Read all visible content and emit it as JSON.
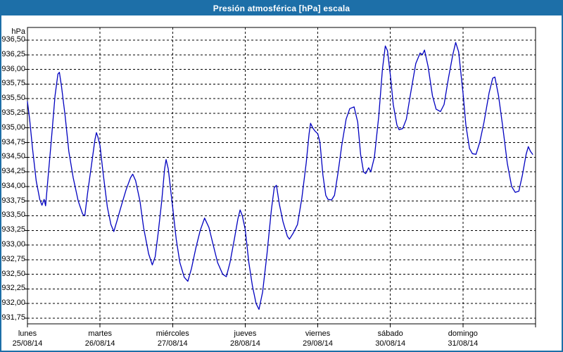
{
  "window": {
    "title": "Presión atmosférica [hPa] escala"
  },
  "chart_data": {
    "type": "line",
    "title": "Presión atmosférica [hPa] escala",
    "unit_label": "hPa",
    "grid": "dashed",
    "legend": "none",
    "line_color": "#0000c0",
    "y_axis": {
      "min": 931.75,
      "max": 936.5,
      "step": 0.25,
      "tick_labels": [
        "936,50",
        "936,25",
        "936,00",
        "935,75",
        "935,50",
        "935,25",
        "935,00",
        "934,75",
        "934,50",
        "934,25",
        "934,00",
        "933,75",
        "933,50",
        "933,25",
        "933,00",
        "932,75",
        "932,50",
        "932,25",
        "932,00",
        "931,75"
      ]
    },
    "x_axis": {
      "unit": "days",
      "range_days": 7,
      "days": [
        {
          "name": "lunes",
          "date": "25/08/14"
        },
        {
          "name": "martes",
          "date": "26/08/14"
        },
        {
          "name": "miércoles",
          "date": "27/08/14"
        },
        {
          "name": "jueves",
          "date": "28/08/14"
        },
        {
          "name": "viernes",
          "date": "29/08/14"
        },
        {
          "name": "sábado",
          "date": "30/08/14"
        },
        {
          "name": "domingo",
          "date": "31/08/14"
        }
      ]
    },
    "series": [
      {
        "name": "Presión atmosférica [hPa]",
        "x_unit": "days_from_monday_00h",
        "points": [
          [
            0.0,
            935.45
          ],
          [
            0.03,
            935.15
          ],
          [
            0.07,
            934.65
          ],
          [
            0.12,
            934.1
          ],
          [
            0.17,
            933.78
          ],
          [
            0.2,
            933.68
          ],
          [
            0.23,
            933.78
          ],
          [
            0.25,
            933.67
          ],
          [
            0.28,
            934.1
          ],
          [
            0.33,
            934.8
          ],
          [
            0.38,
            935.55
          ],
          [
            0.42,
            935.92
          ],
          [
            0.44,
            935.95
          ],
          [
            0.47,
            935.7
          ],
          [
            0.52,
            935.2
          ],
          [
            0.57,
            934.6
          ],
          [
            0.63,
            934.15
          ],
          [
            0.7,
            933.75
          ],
          [
            0.76,
            933.53
          ],
          [
            0.79,
            933.5
          ],
          [
            0.83,
            933.9
          ],
          [
            0.88,
            934.35
          ],
          [
            0.93,
            934.8
          ],
          [
            0.95,
            934.92
          ],
          [
            0.97,
            934.85
          ],
          [
            1.0,
            934.7
          ],
          [
            1.04,
            934.25
          ],
          [
            1.1,
            933.65
          ],
          [
            1.15,
            933.35
          ],
          [
            1.19,
            933.23
          ],
          [
            1.23,
            933.4
          ],
          [
            1.3,
            933.7
          ],
          [
            1.36,
            933.95
          ],
          [
            1.42,
            934.15
          ],
          [
            1.45,
            934.21
          ],
          [
            1.49,
            934.1
          ],
          [
            1.55,
            933.75
          ],
          [
            1.6,
            933.3
          ],
          [
            1.67,
            932.85
          ],
          [
            1.72,
            932.66
          ],
          [
            1.76,
            932.8
          ],
          [
            1.8,
            933.2
          ],
          [
            1.85,
            933.75
          ],
          [
            1.89,
            934.3
          ],
          [
            1.91,
            934.46
          ],
          [
            1.94,
            934.3
          ],
          [
            2.0,
            933.65
          ],
          [
            2.05,
            933.1
          ],
          [
            2.1,
            932.7
          ],
          [
            2.16,
            932.45
          ],
          [
            2.21,
            932.38
          ],
          [
            2.26,
            932.6
          ],
          [
            2.32,
            932.95
          ],
          [
            2.38,
            933.25
          ],
          [
            2.44,
            933.46
          ],
          [
            2.5,
            933.3
          ],
          [
            2.56,
            933.0
          ],
          [
            2.62,
            932.7
          ],
          [
            2.69,
            932.5
          ],
          [
            2.74,
            932.46
          ],
          [
            2.79,
            932.7
          ],
          [
            2.85,
            933.1
          ],
          [
            2.9,
            933.45
          ],
          [
            2.93,
            933.6
          ],
          [
            2.96,
            933.5
          ],
          [
            3.0,
            933.27
          ],
          [
            3.05,
            932.7
          ],
          [
            3.1,
            932.3
          ],
          [
            3.15,
            932.0
          ],
          [
            3.19,
            931.9
          ],
          [
            3.24,
            932.2
          ],
          [
            3.3,
            932.85
          ],
          [
            3.36,
            933.6
          ],
          [
            3.4,
            933.98
          ],
          [
            3.43,
            934.02
          ],
          [
            3.47,
            933.7
          ],
          [
            3.52,
            933.4
          ],
          [
            3.58,
            933.15
          ],
          [
            3.61,
            933.1
          ],
          [
            3.66,
            933.2
          ],
          [
            3.72,
            933.35
          ],
          [
            3.78,
            933.8
          ],
          [
            3.84,
            934.4
          ],
          [
            3.88,
            934.9
          ],
          [
            3.9,
            935.08
          ],
          [
            3.93,
            935.0
          ],
          [
            3.96,
            934.95
          ],
          [
            4.0,
            934.9
          ],
          [
            4.03,
            934.75
          ],
          [
            4.07,
            934.2
          ],
          [
            4.11,
            933.85
          ],
          [
            4.14,
            933.78
          ],
          [
            4.19,
            933.77
          ],
          [
            4.23,
            933.85
          ],
          [
            4.28,
            934.25
          ],
          [
            4.33,
            934.7
          ],
          [
            4.39,
            935.15
          ],
          [
            4.44,
            935.33
          ],
          [
            4.5,
            935.36
          ],
          [
            4.55,
            935.1
          ],
          [
            4.59,
            934.55
          ],
          [
            4.63,
            934.25
          ],
          [
            4.66,
            934.22
          ],
          [
            4.7,
            934.32
          ],
          [
            4.73,
            934.25
          ],
          [
            4.78,
            934.5
          ],
          [
            4.84,
            935.2
          ],
          [
            4.89,
            936.0
          ],
          [
            4.93,
            936.4
          ],
          [
            4.96,
            936.32
          ],
          [
            5.0,
            935.9
          ],
          [
            5.04,
            935.4
          ],
          [
            5.09,
            935.05
          ],
          [
            5.12,
            934.97
          ],
          [
            5.17,
            934.99
          ],
          [
            5.22,
            935.15
          ],
          [
            5.28,
            935.6
          ],
          [
            5.35,
            936.1
          ],
          [
            5.41,
            936.28
          ],
          [
            5.44,
            936.25
          ],
          [
            5.47,
            936.33
          ],
          [
            5.52,
            936.05
          ],
          [
            5.58,
            935.55
          ],
          [
            5.63,
            935.32
          ],
          [
            5.69,
            935.28
          ],
          [
            5.74,
            935.4
          ],
          [
            5.8,
            935.85
          ],
          [
            5.86,
            936.25
          ],
          [
            5.9,
            936.46
          ],
          [
            5.94,
            936.3
          ],
          [
            6.0,
            935.6
          ],
          [
            6.04,
            935.05
          ],
          [
            6.09,
            934.65
          ],
          [
            6.13,
            934.56
          ],
          [
            6.18,
            934.55
          ],
          [
            6.23,
            934.75
          ],
          [
            6.29,
            935.1
          ],
          [
            6.36,
            935.6
          ],
          [
            6.41,
            935.85
          ],
          [
            6.44,
            935.87
          ],
          [
            6.49,
            935.55
          ],
          [
            6.55,
            935.0
          ],
          [
            6.61,
            934.4
          ],
          [
            6.67,
            934.0
          ],
          [
            6.72,
            933.9
          ],
          [
            6.77,
            933.92
          ],
          [
            6.82,
            934.2
          ],
          [
            6.87,
            934.55
          ],
          [
            6.9,
            934.68
          ],
          [
            6.93,
            934.6
          ],
          [
            6.96,
            934.55
          ]
        ]
      }
    ]
  },
  "colors": {
    "titlebar_bg": "#1d6fa8",
    "titlebar_text": "#ffffff",
    "frame": "#1d6fa8",
    "plot_border": "#000000",
    "gridline": "#000000",
    "line": "#0000c0",
    "background": "#ffffff"
  }
}
